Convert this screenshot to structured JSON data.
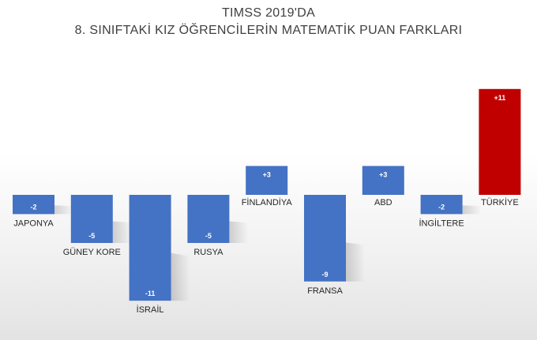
{
  "chart_data": {
    "type": "bar",
    "title_lines": [
      "TIMSS 2019'DA",
      "8. SINIFTAKİ KIZ ÖĞRENCİLERİN MATEMATİK PUAN FARKLARI"
    ],
    "categories": [
      "JAPONYA",
      "GÜNEY KORE",
      "İSRAİL",
      "RUSYA",
      "FİNLANDİYA",
      "FRANSA",
      "ABD",
      "İNGİLTERE",
      "TÜRKİYE"
    ],
    "values": [
      -2,
      -5,
      -11,
      -5,
      3,
      -9,
      3,
      -2,
      11
    ],
    "value_labels": [
      "-2",
      "-5",
      "-11",
      "-5",
      "+3",
      "-9",
      "+3",
      "-2",
      "+11"
    ],
    "colors": {
      "default": "#4472c4",
      "highlight": "#c00000",
      "highlight_category": "TÜRKİYE"
    },
    "ylim": [
      -11,
      11
    ],
    "grid": false,
    "legend": "none"
  }
}
